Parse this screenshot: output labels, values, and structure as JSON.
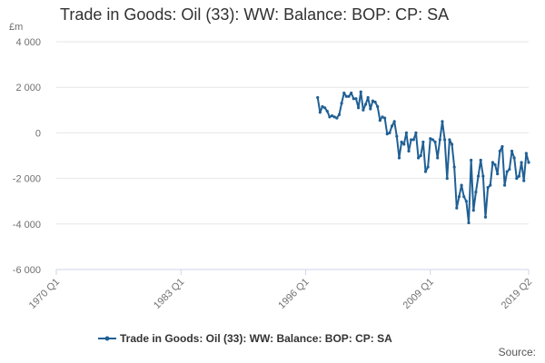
{
  "chart_data": {
    "type": "line",
    "title": "Trade in Goods: Oil (33): WW: Balance: BOP: CP: SA",
    "ylabel": "£m",
    "xlabel": "",
    "ylim": [
      -6000,
      4000
    ],
    "y_ticks": [
      "4 000",
      "2 000",
      "0",
      "-2 000",
      "-4 000",
      "-6 000"
    ],
    "y_tick_values": [
      4000,
      2000,
      0,
      -2000,
      -4000,
      -6000
    ],
    "x_range_quarters": [
      "1970 Q1",
      "2019 Q2"
    ],
    "x_ticks": [
      "1970 Q1",
      "1983 Q1",
      "1996 Q1",
      "2009 Q1",
      "2019 Q2"
    ],
    "grid": "horizontal",
    "legend_position": "bottom",
    "color": "#206095",
    "series": [
      {
        "name": "Trade in Goods: Oil (33): WW: Balance: BOP: CP: SA",
        "x": [
          "1997 Q2",
          "1997 Q3",
          "1997 Q4",
          "1998 Q1",
          "1998 Q2",
          "1998 Q3",
          "1998 Q4",
          "1999 Q1",
          "1999 Q2",
          "1999 Q3",
          "1999 Q4",
          "2000 Q1",
          "2000 Q2",
          "2000 Q3",
          "2000 Q4",
          "2001 Q1",
          "2001 Q2",
          "2001 Q3",
          "2001 Q4",
          "2002 Q1",
          "2002 Q2",
          "2002 Q3",
          "2002 Q4",
          "2003 Q1",
          "2003 Q2",
          "2003 Q3",
          "2003 Q4",
          "2004 Q1",
          "2004 Q2",
          "2004 Q3",
          "2004 Q4",
          "2005 Q1",
          "2005 Q2",
          "2005 Q3",
          "2005 Q4",
          "2006 Q1",
          "2006 Q2",
          "2006 Q3",
          "2006 Q4",
          "2007 Q1",
          "2007 Q2",
          "2007 Q3",
          "2007 Q4",
          "2008 Q1",
          "2008 Q2",
          "2008 Q3",
          "2008 Q4",
          "2009 Q1",
          "2009 Q2",
          "2009 Q3",
          "2009 Q4",
          "2010 Q1",
          "2010 Q2",
          "2010 Q3",
          "2010 Q4",
          "2011 Q1",
          "2011 Q2",
          "2011 Q3",
          "2011 Q4",
          "2012 Q1",
          "2012 Q2",
          "2012 Q3",
          "2012 Q4",
          "2013 Q1",
          "2013 Q2",
          "2013 Q3",
          "2013 Q4",
          "2014 Q1",
          "2014 Q2",
          "2014 Q3",
          "2014 Q4",
          "2015 Q1",
          "2015 Q2",
          "2015 Q3",
          "2015 Q4",
          "2016 Q1",
          "2016 Q2",
          "2016 Q3",
          "2016 Q4",
          "2017 Q1",
          "2017 Q2",
          "2017 Q3",
          "2017 Q4",
          "2018 Q1",
          "2018 Q2",
          "2018 Q3",
          "2018 Q4",
          "2019 Q1",
          "2019 Q2"
        ],
        "values": [
          1550,
          900,
          1150,
          1100,
          950,
          700,
          750,
          700,
          650,
          800,
          1300,
          1750,
          1600,
          1600,
          1750,
          1500,
          1500,
          1100,
          1800,
          1000,
          1250,
          1550,
          1050,
          1400,
          1350,
          1150,
          550,
          700,
          650,
          -50,
          0,
          300,
          500,
          -150,
          -1100,
          -400,
          -500,
          0,
          -800,
          -300,
          -300,
          0,
          -1100,
          -1000,
          -400,
          -1700,
          -1500,
          -250,
          -300,
          -400,
          -1100,
          -300,
          500,
          -300,
          -2000,
          -300,
          -500,
          -1500,
          -3300,
          -2800,
          -2300,
          -2800,
          -3000,
          -3950,
          -1200,
          -3400,
          -2600,
          -1900,
          -1200,
          -1900,
          -3700,
          -2400,
          -2300,
          -1300,
          -1400,
          -1800,
          -800,
          -600,
          -2300,
          -1700,
          -1600,
          -800,
          -1100,
          -2000,
          -1900,
          -1300,
          -2100,
          -900,
          -1300
        ]
      }
    ]
  },
  "source_label": "Source:"
}
